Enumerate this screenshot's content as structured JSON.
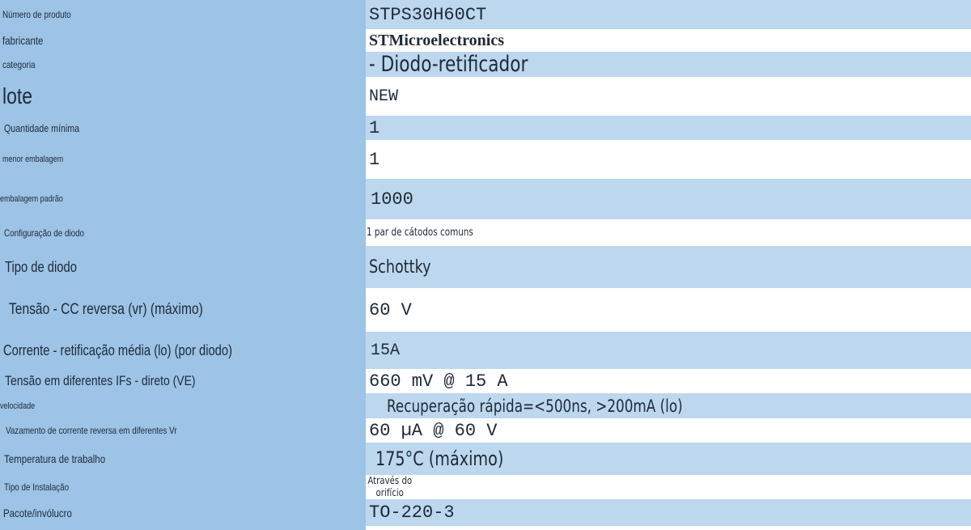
{
  "colors": {
    "label_column": "#9dc3e6",
    "value_blue": "#bdd7ee",
    "value_white": "#ffffff",
    "text": "#1e2a38"
  },
  "rows": [
    {
      "label": "Número de produto",
      "value": "STPS30H60CT"
    },
    {
      "label": "fabricante",
      "value": "STMicroelectronics"
    },
    {
      "label": "categoria",
      "value": "- Diodo-retificador"
    },
    {
      "label": "lote",
      "value": "NEW"
    },
    {
      "label": "Quantidade mínima",
      "value": "1"
    },
    {
      "label": "menor embalagem",
      "value": "1"
    },
    {
      "label": "embalagem padrão",
      "value": "1000"
    },
    {
      "label": "Configuração de diodo",
      "value": "1 par de cátodos comuns"
    },
    {
      "label": "Tipo de diodo",
      "value": "Schottky"
    },
    {
      "label": "Tensão - CC reversa (vr) (máximo)",
      "value": "60 V"
    },
    {
      "label": "Corrente - retificação média (lo) (por diodo)",
      "value": "15A"
    },
    {
      "label": "Tensão em diferentes IFs - direto (VE)",
      "value": "660 mV @ 15 A"
    },
    {
      "label": "velocidade",
      "value": "Recuperação rápida=<500ns, >200mA (lo)"
    },
    {
      "label": "Vazamento de corrente reversa em diferentes Vr",
      "value": "60 µA @ 60 V"
    },
    {
      "label": "Temperatura de trabalho",
      "value": "175°C (máximo)"
    },
    {
      "label": "Tipo de Instalação",
      "value": "Através do orifício"
    },
    {
      "label": "Pacote/invólucro",
      "value": "TO-220-3"
    }
  ]
}
